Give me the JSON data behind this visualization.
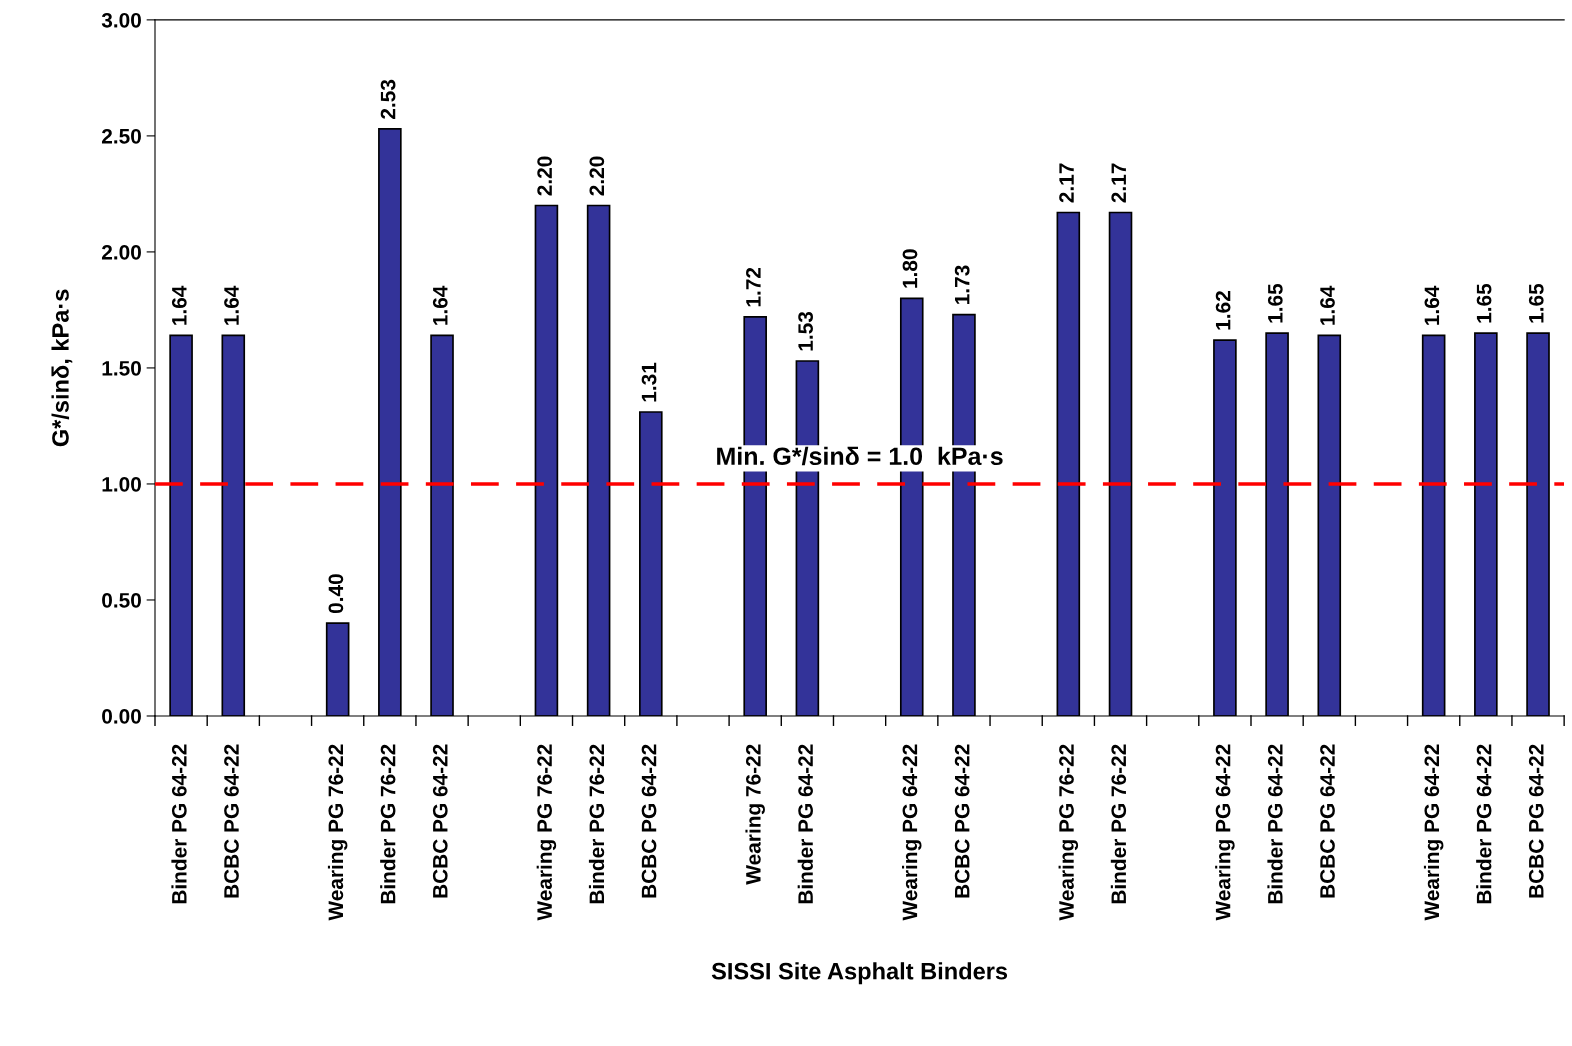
{
  "chart_data": {
    "type": "bar",
    "xlabel": "SISSI Site Asphalt Binders",
    "ylabel": "G*/sinδ, kPa·s",
    "categories": [
      "Binder PG 64-22",
      "BCBC PG 64-22",
      null,
      "Wearing PG 76-22",
      "Binder PG 76-22",
      "BCBC PG 64-22",
      null,
      "Wearing PG 76-22",
      "Binder PG 76-22",
      "BCBC PG 64-22",
      null,
      "Wearing 76-22",
      "Binder PG 64-22",
      null,
      "Wearing PG 64-22",
      "BCBC PG 64-22",
      null,
      "Wearing PG 76-22",
      "Binder PG 76-22",
      null,
      "Wearing PG 64-22",
      "Binder PG 64-22",
      "BCBC PG 64-22",
      null,
      "Wearing PG 64-22",
      "Binder PG 64-22",
      "BCBC PG 64-22"
    ],
    "values": [
      1.64,
      1.64,
      null,
      0.4,
      2.53,
      1.64,
      null,
      2.2,
      2.2,
      1.31,
      null,
      1.72,
      1.53,
      null,
      1.8,
      1.73,
      null,
      2.17,
      2.17,
      null,
      1.62,
      1.65,
      1.64,
      null,
      1.64,
      1.65,
      1.65
    ],
    "value_labels": [
      "1.64",
      "1.64",
      null,
      "0.40",
      "2.53",
      "1.64",
      null,
      "2.20",
      "2.20",
      "1.31",
      null,
      "1.72",
      "1.53",
      null,
      "1.80",
      "1.73",
      null,
      "2.17",
      "2.17",
      null,
      "1.62",
      "1.65",
      "1.64",
      null,
      "1.64",
      "1.65",
      "1.65"
    ],
    "color": "#333399",
    "ylim": [
      0,
      3
    ],
    "yticks": [
      {
        "value": 0,
        "label": "0.00"
      },
      {
        "value": 0.5,
        "label": "0.50"
      },
      {
        "value": 1,
        "label": "1.00"
      },
      {
        "value": 1.5,
        "label": "1.50"
      },
      {
        "value": 2,
        "label": "2.00"
      },
      {
        "value": 2.5,
        "label": "2.50"
      },
      {
        "value": 3,
        "label": "3.00"
      }
    ],
    "ref_lines": [
      {
        "axis": "y",
        "value": 1.0,
        "label": "Min. G*/sinδ = 1.0  kPa·s",
        "color": "#ff0000",
        "line_style": "dashed"
      }
    ],
    "grid": false,
    "legend": false
  }
}
